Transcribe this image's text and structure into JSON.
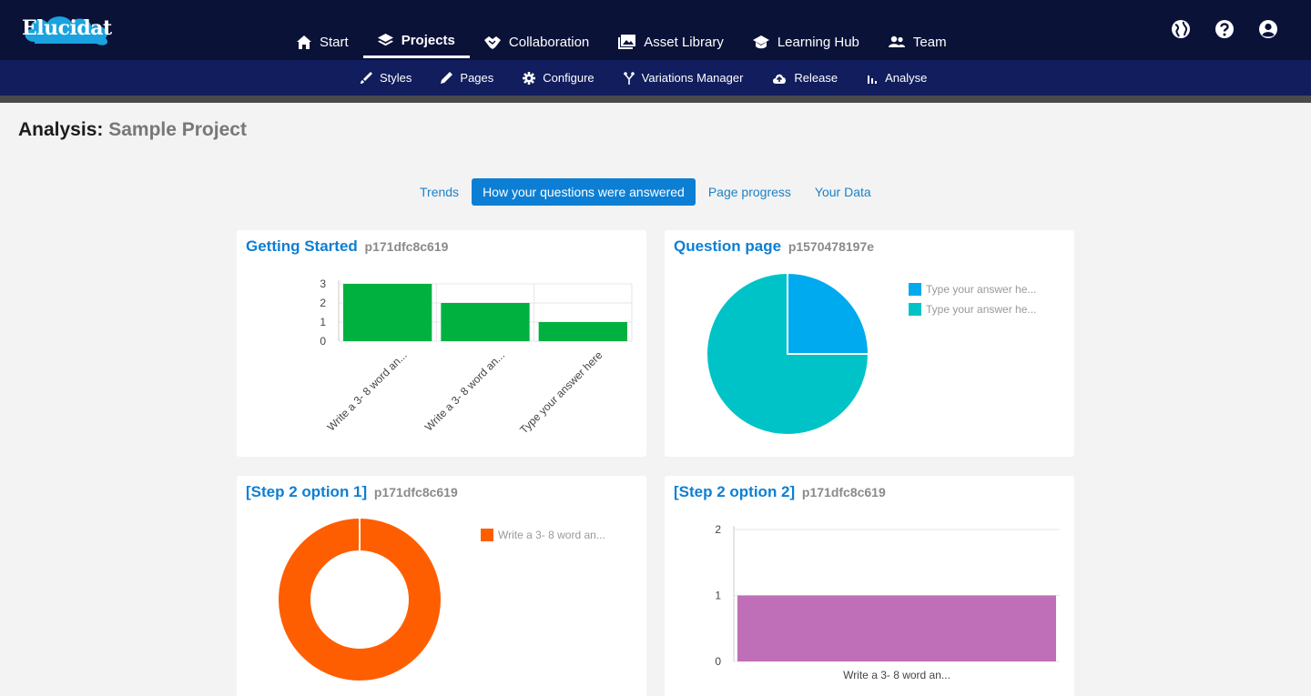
{
  "brand": {
    "name": "Elucidat"
  },
  "main_nav": [
    {
      "label": "Start",
      "icon": "home-icon"
    },
    {
      "label": "Projects",
      "icon": "layers-icon",
      "active": true
    },
    {
      "label": "Collaboration",
      "icon": "handshake-icon"
    },
    {
      "label": "Asset Library",
      "icon": "images-icon"
    },
    {
      "label": "Learning Hub",
      "icon": "graduation-cap-icon"
    },
    {
      "label": "Team",
      "icon": "users-icon"
    }
  ],
  "top_icons": [
    "globe-icon",
    "help-icon",
    "user-account-icon"
  ],
  "sub_nav": [
    {
      "label": "Styles",
      "icon": "brush-icon"
    },
    {
      "label": "Pages",
      "icon": "pencil-icon"
    },
    {
      "label": "Configure",
      "icon": "gear-icon"
    },
    {
      "label": "Variations Manager",
      "icon": "branch-icon"
    },
    {
      "label": "Release",
      "icon": "cloud-upload-icon"
    },
    {
      "label": "Analyse",
      "icon": "bar-chart-icon"
    }
  ],
  "page": {
    "title_prefix": "Analysis:",
    "project_name": "Sample Project"
  },
  "tabs": [
    {
      "label": "Trends"
    },
    {
      "label": "How your questions were answered",
      "active": true
    },
    {
      "label": "Page progress"
    },
    {
      "label": "Your Data"
    }
  ],
  "colors": {
    "green": "#00b140",
    "blue": "#00aaee",
    "teal": "#00c3c8",
    "orange": "#ff5e00",
    "purple": "#bf6fb8"
  },
  "cards": [
    {
      "title": "Getting Started",
      "id": "p171dfc8c619"
    },
    {
      "title": "Question page",
      "id": "p1570478197e"
    },
    {
      "title": "[Step 2 option 1]",
      "id": "p171dfc8c619"
    },
    {
      "title": "[Step 2 option 2]",
      "id": "p171dfc8c619"
    }
  ],
  "chart_data": [
    {
      "type": "bar",
      "categories": [
        "Write a 3- 8 word an...",
        "Write a 3- 8 word an...",
        "Type your answer here"
      ],
      "values": [
        3,
        2,
        1
      ],
      "ylim": [
        0,
        3
      ],
      "yticks": [
        0,
        1,
        2,
        3
      ],
      "color": "#00b140",
      "grid": true
    },
    {
      "type": "pie",
      "labels": [
        "Type your answer he...",
        "Type your answer he..."
      ],
      "values": [
        1,
        3
      ],
      "colors": [
        "#00aaee",
        "#00c3c8"
      ],
      "legend": "right"
    },
    {
      "type": "pie",
      "donut": true,
      "labels": [
        "Write a 3- 8 word an..."
      ],
      "values": [
        1
      ],
      "colors": [
        "#ff5e00"
      ],
      "legend": "right"
    },
    {
      "type": "bar",
      "categories": [
        "Write a 3- 8 word an..."
      ],
      "values": [
        1
      ],
      "ylim": [
        0,
        2
      ],
      "yticks": [
        0,
        1,
        2
      ],
      "color": "#bf6fb8",
      "grid": true
    }
  ]
}
